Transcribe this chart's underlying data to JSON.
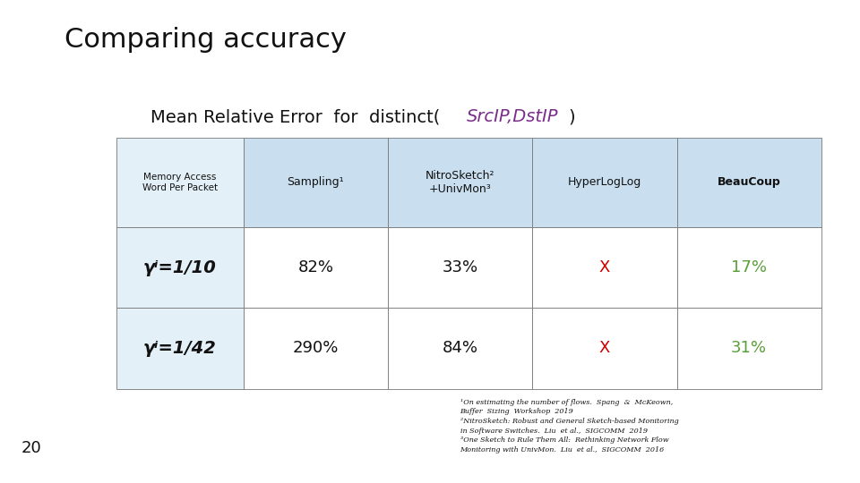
{
  "title": "Comparing accuracy",
  "subtitle_plain": "Mean Relative Error  for  distinct(",
  "subtitle_italic_color": "SrcIP,DstIP",
  "subtitle_end": ")",
  "subtitle_italic_color_hex": "#7B2D8B",
  "header_bg": "#C9DFF0",
  "light_blue": "#E4F0F8",
  "col_headers": [
    "Sampling¹",
    "NitroSketch²\n+UnivMon³",
    "HyperLogLog",
    "BeauCoup"
  ],
  "row_label_header": "Memory Access\nWord Per Packet",
  "rows": [
    {
      "label": "γⁱ=1/10",
      "values": [
        "82%",
        "33%",
        "X",
        "17%"
      ],
      "colors": [
        "#111111",
        "#111111",
        "#CC0000",
        "#5A9E3A"
      ]
    },
    {
      "label": "γⁱ=1/42",
      "values": [
        "290%",
        "84%",
        "X",
        "31%"
      ],
      "colors": [
        "#111111",
        "#111111",
        "#CC0000",
        "#5A9E3A"
      ]
    }
  ],
  "footnote_lines": [
    "¹On estimating the number of flows.  Spang  &  McKeown,",
    "Buffer  Sizing  Workshop  2019",
    "²NitroSketch: Robust and General Sketch-based Monitoring",
    "in Software Switches.  Liu  et al.,  SIGCOMM  2019",
    "³One Sketch to Rule Them All:  Rethinking Network Flow",
    "Monitoring with UnivMon.  Liu  et al.,  SIGCOMM  2016"
  ],
  "page_num": "20",
  "bg_color": "#FFFFFF",
  "title_fontsize": 22,
  "subtitle_fontsize": 14,
  "header_fontsize": 9,
  "cell_fontsize": 13,
  "footnote_fontsize": 5.8,
  "page_fontsize": 13
}
